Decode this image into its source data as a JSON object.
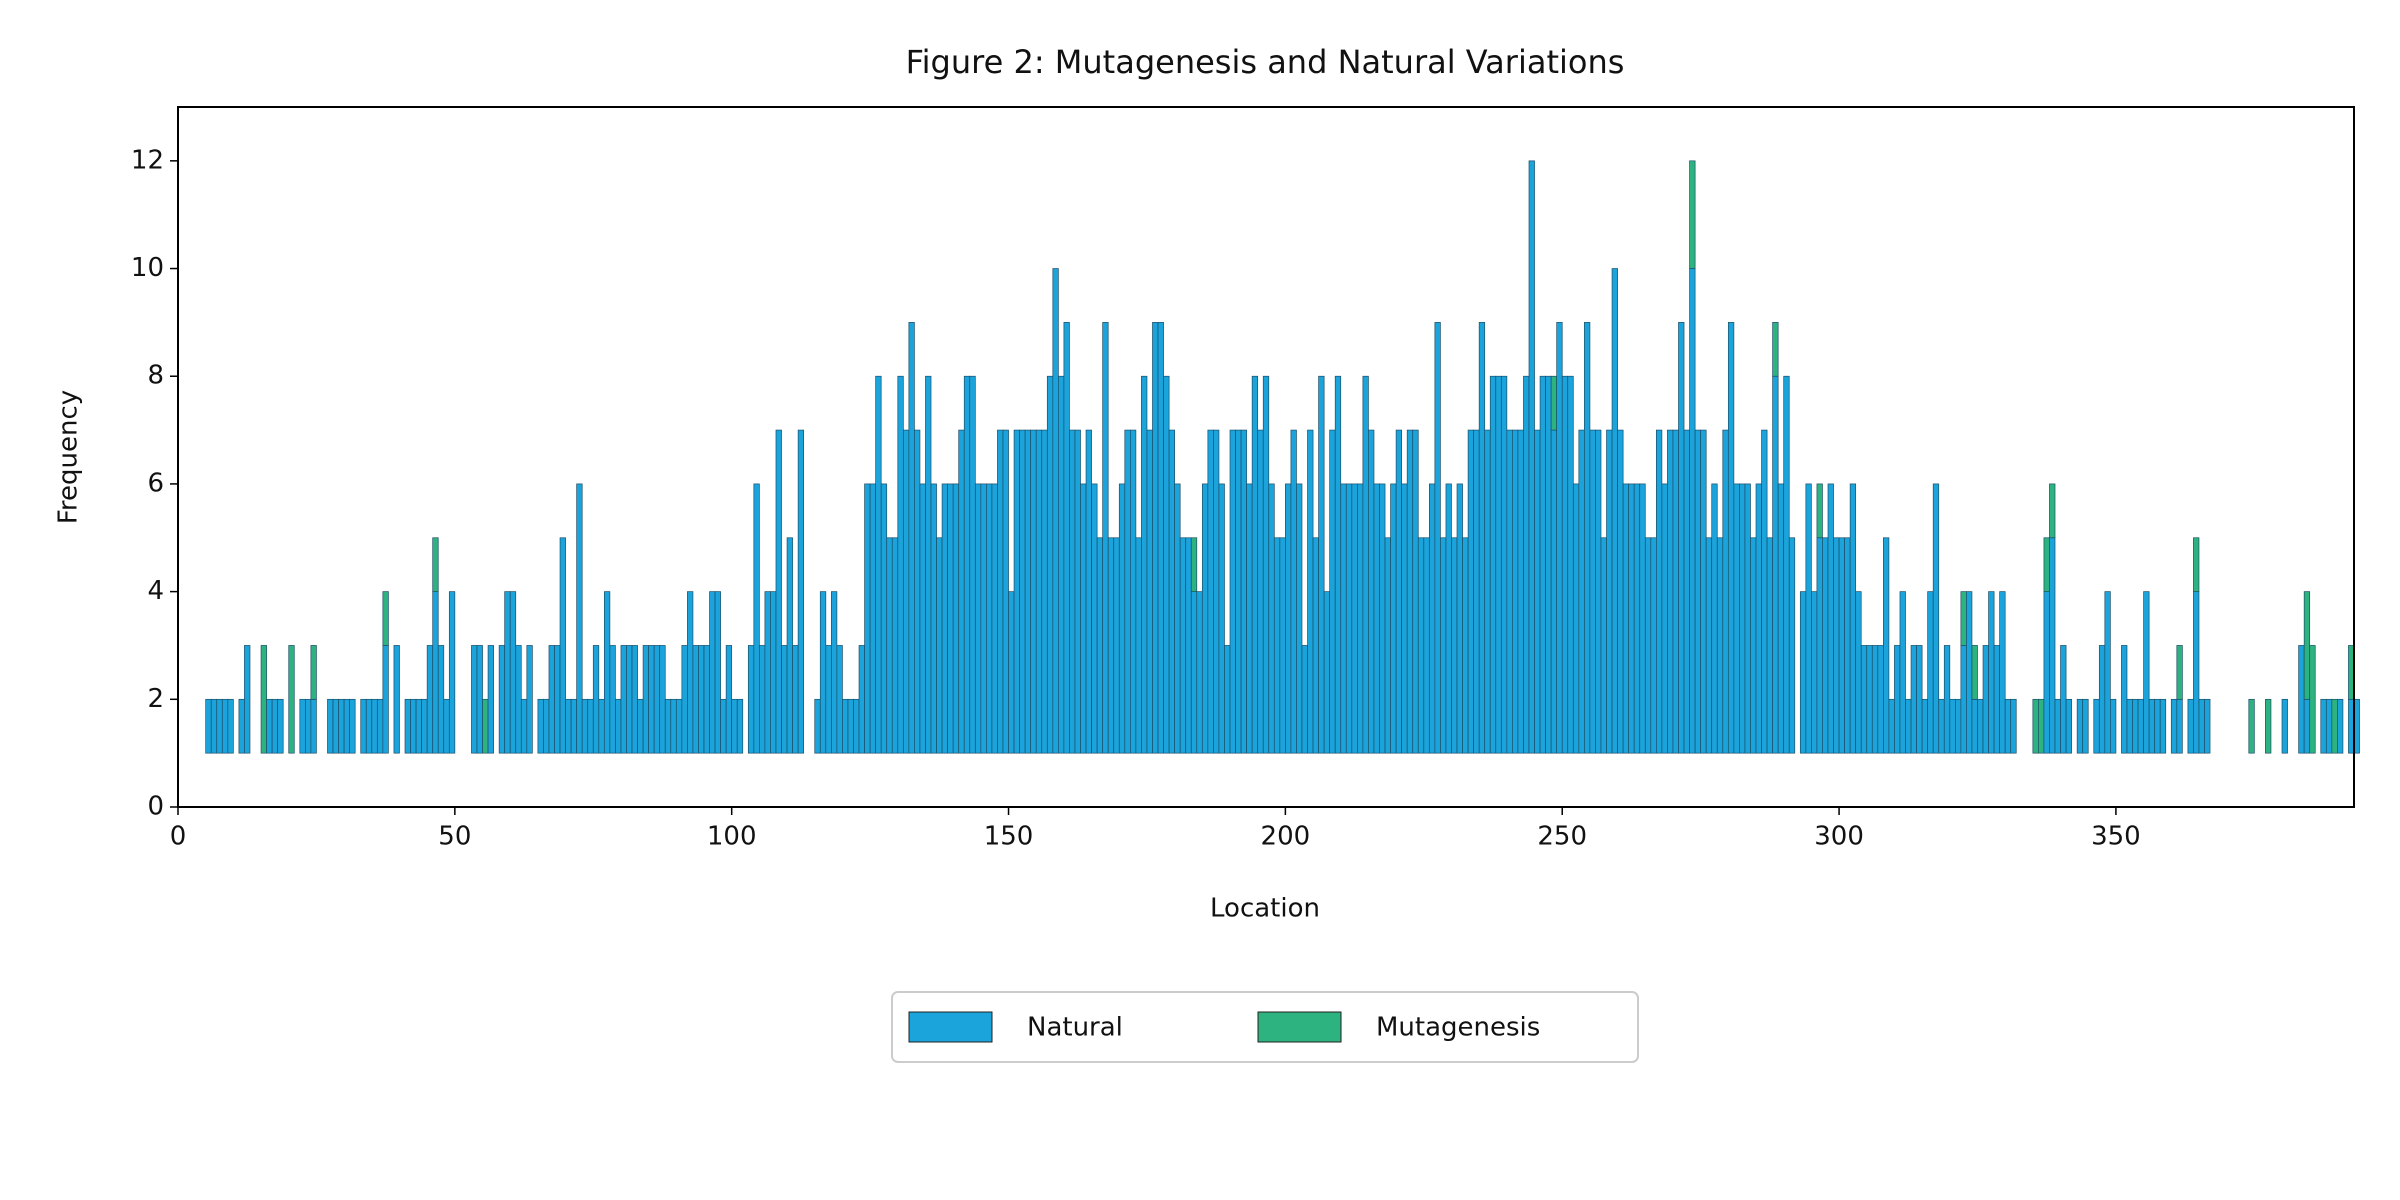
{
  "chart_data": {
    "type": "histogram",
    "title": "Figure 2: Mutagenesis and Natural Variations",
    "xlabel": "Location",
    "ylabel": "Frequency",
    "stacked": true,
    "bottom": 1,
    "legend": "below",
    "bins": [
      5,
      6,
      7,
      8,
      9,
      10,
      11,
      12,
      13,
      14,
      15,
      16,
      17,
      18,
      19,
      20,
      21,
      22,
      23,
      24,
      25,
      26,
      27,
      28,
      29,
      30,
      31,
      32,
      33,
      34,
      35,
      36,
      37,
      38,
      39,
      40,
      41,
      42,
      43,
      44,
      45,
      46,
      47,
      48,
      49,
      50,
      51,
      52,
      53,
      54,
      55,
      56,
      57,
      58,
      59,
      60,
      61,
      62,
      63,
      64,
      65,
      66,
      67,
      68,
      69,
      70,
      71,
      72,
      73,
      74,
      75,
      76,
      77,
      78,
      79,
      80,
      81,
      82,
      83,
      84,
      85,
      86,
      87,
      88,
      89,
      90,
      91,
      92,
      93,
      94,
      95,
      96,
      97,
      98,
      99,
      100,
      101,
      102,
      103,
      104,
      105,
      106,
      107,
      108,
      109,
      110,
      111,
      112,
      113,
      114,
      115,
      116,
      117,
      118,
      119,
      120,
      121,
      122,
      123,
      124,
      125,
      126,
      127,
      128,
      129,
      130,
      131,
      132,
      133,
      134,
      135,
      136,
      137,
      138,
      139,
      140,
      141,
      142,
      143,
      144,
      145,
      146,
      147,
      148,
      149,
      150,
      151,
      152,
      153,
      154,
      155,
      156,
      157,
      158,
      159,
      160,
      161,
      162,
      163,
      164,
      165,
      166,
      167,
      168,
      169,
      170,
      171,
      172,
      173,
      174,
      175,
      176,
      177,
      178,
      179,
      180,
      181,
      182,
      183,
      184,
      185,
      186,
      187,
      188,
      189,
      190,
      191,
      192,
      193,
      194,
      195,
      196,
      197,
      198,
      199,
      200,
      201,
      202,
      203,
      204,
      205,
      206,
      207,
      208,
      209,
      210,
      211,
      212,
      213,
      214,
      215,
      216,
      217,
      218,
      219,
      220,
      221,
      222,
      223,
      224,
      225,
      226,
      227,
      228,
      229,
      230,
      231,
      232,
      233,
      234,
      235,
      236,
      237,
      238,
      239,
      240,
      241,
      242,
      243,
      244,
      245,
      246,
      247,
      248,
      249,
      250,
      251,
      252,
      253,
      254,
      255,
      256,
      257,
      258,
      259,
      260,
      261,
      262,
      263,
      264,
      265,
      266,
      267,
      268,
      269,
      270,
      271,
      272,
      273,
      274,
      275,
      276,
      277,
      278,
      279,
      280,
      281,
      282,
      283,
      284,
      285,
      286,
      287,
      288,
      289,
      290,
      291,
      292,
      293,
      294,
      295,
      296,
      297,
      298,
      299,
      300,
      301,
      302,
      303,
      304,
      305,
      306,
      307,
      308,
      309,
      310,
      311,
      312,
      313,
      314,
      315,
      316,
      317,
      318,
      319,
      320,
      321,
      322,
      323,
      324,
      325,
      326,
      327,
      328,
      329,
      330,
      331,
      332,
      333,
      334,
      335,
      336,
      337,
      338,
      339,
      340,
      341,
      342,
      343,
      344,
      345,
      346,
      347,
      348,
      349,
      350,
      351,
      352,
      353,
      354,
      355,
      356,
      357,
      358,
      359,
      360,
      361,
      362,
      363,
      364,
      365,
      366,
      367,
      368,
      369,
      370,
      371,
      372,
      373,
      374,
      375,
      376,
      377,
      378,
      379,
      380,
      381,
      382,
      383,
      384,
      385,
      386,
      387,
      388,
      389,
      390,
      391,
      392,
      393,
      394
    ],
    "series": [
      {
        "name": "Natural",
        "color": "#1ba3dc",
        "values": [
          1,
          1,
          1,
          1,
          1,
          0,
          1,
          2,
          0,
          0,
          0,
          1,
          1,
          1,
          0,
          0,
          0,
          1,
          1,
          1,
          0,
          0,
          1,
          1,
          1,
          1,
          1,
          0,
          1,
          1,
          1,
          1,
          2,
          0,
          2,
          0,
          1,
          1,
          1,
          1,
          2,
          3,
          2,
          1,
          3,
          0,
          0,
          0,
          2,
          2,
          0,
          2,
          0,
          2,
          3,
          3,
          2,
          1,
          2,
          0,
          1,
          1,
          2,
          2,
          4,
          1,
          1,
          5,
          1,
          1,
          2,
          1,
          3,
          2,
          1,
          2,
          2,
          2,
          1,
          2,
          2,
          2,
          2,
          1,
          1,
          1,
          2,
          3,
          2,
          2,
          2,
          3,
          3,
          1,
          2,
          1,
          1,
          0,
          2,
          5,
          2,
          3,
          3,
          6,
          2,
          4,
          2,
          6,
          0,
          0,
          1,
          3,
          2,
          3,
          2,
          1,
          1,
          1,
          2,
          5,
          5,
          7,
          5,
          4,
          4,
          7,
          6,
          8,
          6,
          5,
          7,
          5,
          4,
          5,
          5,
          5,
          6,
          7,
          7,
          5,
          5,
          5,
          5,
          6,
          6,
          3,
          6,
          6,
          6,
          6,
          6,
          6,
          7,
          9,
          7,
          8,
          6,
          6,
          5,
          6,
          5,
          4,
          8,
          4,
          4,
          5,
          6,
          6,
          4,
          7,
          6,
          8,
          8,
          7,
          6,
          5,
          4,
          4,
          3,
          3,
          5,
          6,
          6,
          5,
          2,
          6,
          6,
          6,
          5,
          7,
          6,
          7,
          5,
          4,
          4,
          5,
          6,
          5,
          2,
          6,
          4,
          7,
          3,
          6,
          7,
          5,
          5,
          5,
          5,
          7,
          6,
          5,
          5,
          4,
          5,
          6,
          5,
          6,
          6,
          4,
          4,
          5,
          8,
          4,
          5,
          4,
          5,
          4,
          6,
          6,
          8,
          6,
          7,
          7,
          7,
          6,
          6,
          6,
          7,
          11,
          6,
          7,
          7,
          6,
          8,
          7,
          7,
          5,
          6,
          8,
          6,
          6,
          4,
          6,
          9,
          6,
          5,
          5,
          5,
          5,
          4,
          4,
          6,
          5,
          6,
          6,
          8,
          6,
          9,
          6,
          6,
          4,
          5,
          4,
          6,
          8,
          5,
          5,
          5,
          4,
          5,
          6,
          4,
          7,
          5,
          7,
          4,
          0,
          3,
          5,
          3,
          4,
          4,
          5,
          4,
          4,
          4,
          5,
          3,
          2,
          2,
          2,
          2,
          4,
          1,
          2,
          3,
          1,
          2,
          2,
          1,
          3,
          5,
          1,
          2,
          1,
          1,
          2,
          3,
          1,
          1,
          2,
          3,
          2,
          3,
          1,
          1,
          0,
          0,
          0,
          0,
          0,
          3,
          4,
          1,
          2,
          1,
          0,
          1,
          1,
          0,
          1,
          2,
          3,
          1,
          0,
          2,
          1,
          1,
          1,
          3,
          1,
          1,
          1,
          0,
          1,
          1,
          0,
          1,
          3,
          1,
          1,
          0,
          0,
          0,
          0,
          0,
          0,
          0,
          0,
          0,
          0,
          0,
          0,
          0,
          1,
          0,
          0,
          2,
          1,
          0,
          0,
          1,
          1,
          0,
          1,
          0,
          1,
          1
        ]
      },
      {
        "name": "Mutagenesis",
        "color": "#2db37f",
        "values": [
          0,
          0,
          0,
          0,
          0,
          0,
          0,
          0,
          0,
          0,
          2,
          0,
          0,
          0,
          0,
          2,
          0,
          0,
          0,
          1,
          0,
          0,
          0,
          0,
          0,
          0,
          0,
          0,
          0,
          0,
          0,
          0,
          1,
          0,
          0,
          0,
          0,
          0,
          0,
          0,
          0,
          1,
          0,
          0,
          0,
          0,
          0,
          0,
          0,
          0,
          1,
          0,
          0,
          0,
          0,
          0,
          0,
          0,
          0,
          0,
          0,
          0,
          0,
          0,
          0,
          0,
          0,
          0,
          0,
          0,
          0,
          0,
          0,
          0,
          0,
          0,
          0,
          0,
          0,
          0,
          0,
          0,
          0,
          0,
          0,
          0,
          0,
          0,
          0,
          0,
          0,
          0,
          0,
          0,
          0,
          0,
          0,
          0,
          0,
          0,
          0,
          0,
          0,
          0,
          0,
          0,
          0,
          0,
          0,
          0,
          0,
          0,
          0,
          0,
          0,
          0,
          0,
          0,
          0,
          0,
          0,
          0,
          0,
          0,
          0,
          0,
          0,
          0,
          0,
          0,
          0,
          0,
          0,
          0,
          0,
          0,
          0,
          0,
          0,
          0,
          0,
          0,
          0,
          0,
          0,
          0,
          0,
          0,
          0,
          0,
          0,
          0,
          0,
          0,
          0,
          0,
          0,
          0,
          0,
          0,
          0,
          0,
          0,
          0,
          0,
          0,
          0,
          0,
          0,
          0,
          0,
          0,
          0,
          0,
          0,
          0,
          0,
          0,
          1,
          0,
          0,
          0,
          0,
          0,
          0,
          0,
          0,
          0,
          0,
          0,
          0,
          0,
          0,
          0,
          0,
          0,
          0,
          0,
          0,
          0,
          0,
          0,
          0,
          0,
          0,
          0,
          0,
          0,
          0,
          0,
          0,
          0,
          0,
          0,
          0,
          0,
          0,
          0,
          0,
          0,
          0,
          0,
          0,
          0,
          0,
          0,
          0,
          0,
          0,
          0,
          0,
          0,
          0,
          0,
          0,
          0,
          0,
          0,
          0,
          0,
          0,
          0,
          0,
          1,
          0,
          0,
          0,
          0,
          0,
          0,
          0,
          0,
          0,
          0,
          0,
          0,
          0,
          0,
          0,
          0,
          0,
          0,
          0,
          0,
          0,
          0,
          0,
          0,
          2,
          0,
          0,
          0,
          0,
          0,
          0,
          0,
          0,
          0,
          0,
          0,
          0,
          0,
          0,
          1,
          0,
          0,
          0,
          0,
          0,
          0,
          0,
          1,
          0,
          0,
          0,
          0,
          0,
          0,
          0,
          0,
          0,
          0,
          0,
          0,
          0,
          0,
          0,
          0,
          0,
          0,
          0,
          0,
          0,
          0,
          0,
          0,
          0,
          1,
          0,
          1,
          0,
          0,
          0,
          0,
          0,
          0,
          0,
          0,
          0,
          0,
          1,
          1,
          1,
          1,
          0,
          0,
          0,
          0,
          0,
          0,
          0,
          0,
          0,
          0,
          0,
          0,
          0,
          0,
          0,
          0,
          0,
          0,
          0,
          0,
          0,
          0,
          1,
          0,
          0,
          1,
          0,
          0,
          0,
          0,
          0,
          0,
          0,
          0,
          0,
          1,
          0,
          0,
          1,
          0,
          0,
          0,
          0,
          0,
          0,
          2,
          2,
          0,
          0,
          0,
          1,
          0,
          0,
          1,
          0,
          0,
          0,
          0
        ]
      }
    ],
    "xlim": [
      0,
      393
    ],
    "ylim": [
      0,
      13
    ],
    "xticks": [
      0,
      50,
      100,
      150,
      200,
      250,
      300,
      350
    ],
    "yticks": [
      0,
      2,
      4,
      6,
      8,
      10,
      12
    ]
  }
}
